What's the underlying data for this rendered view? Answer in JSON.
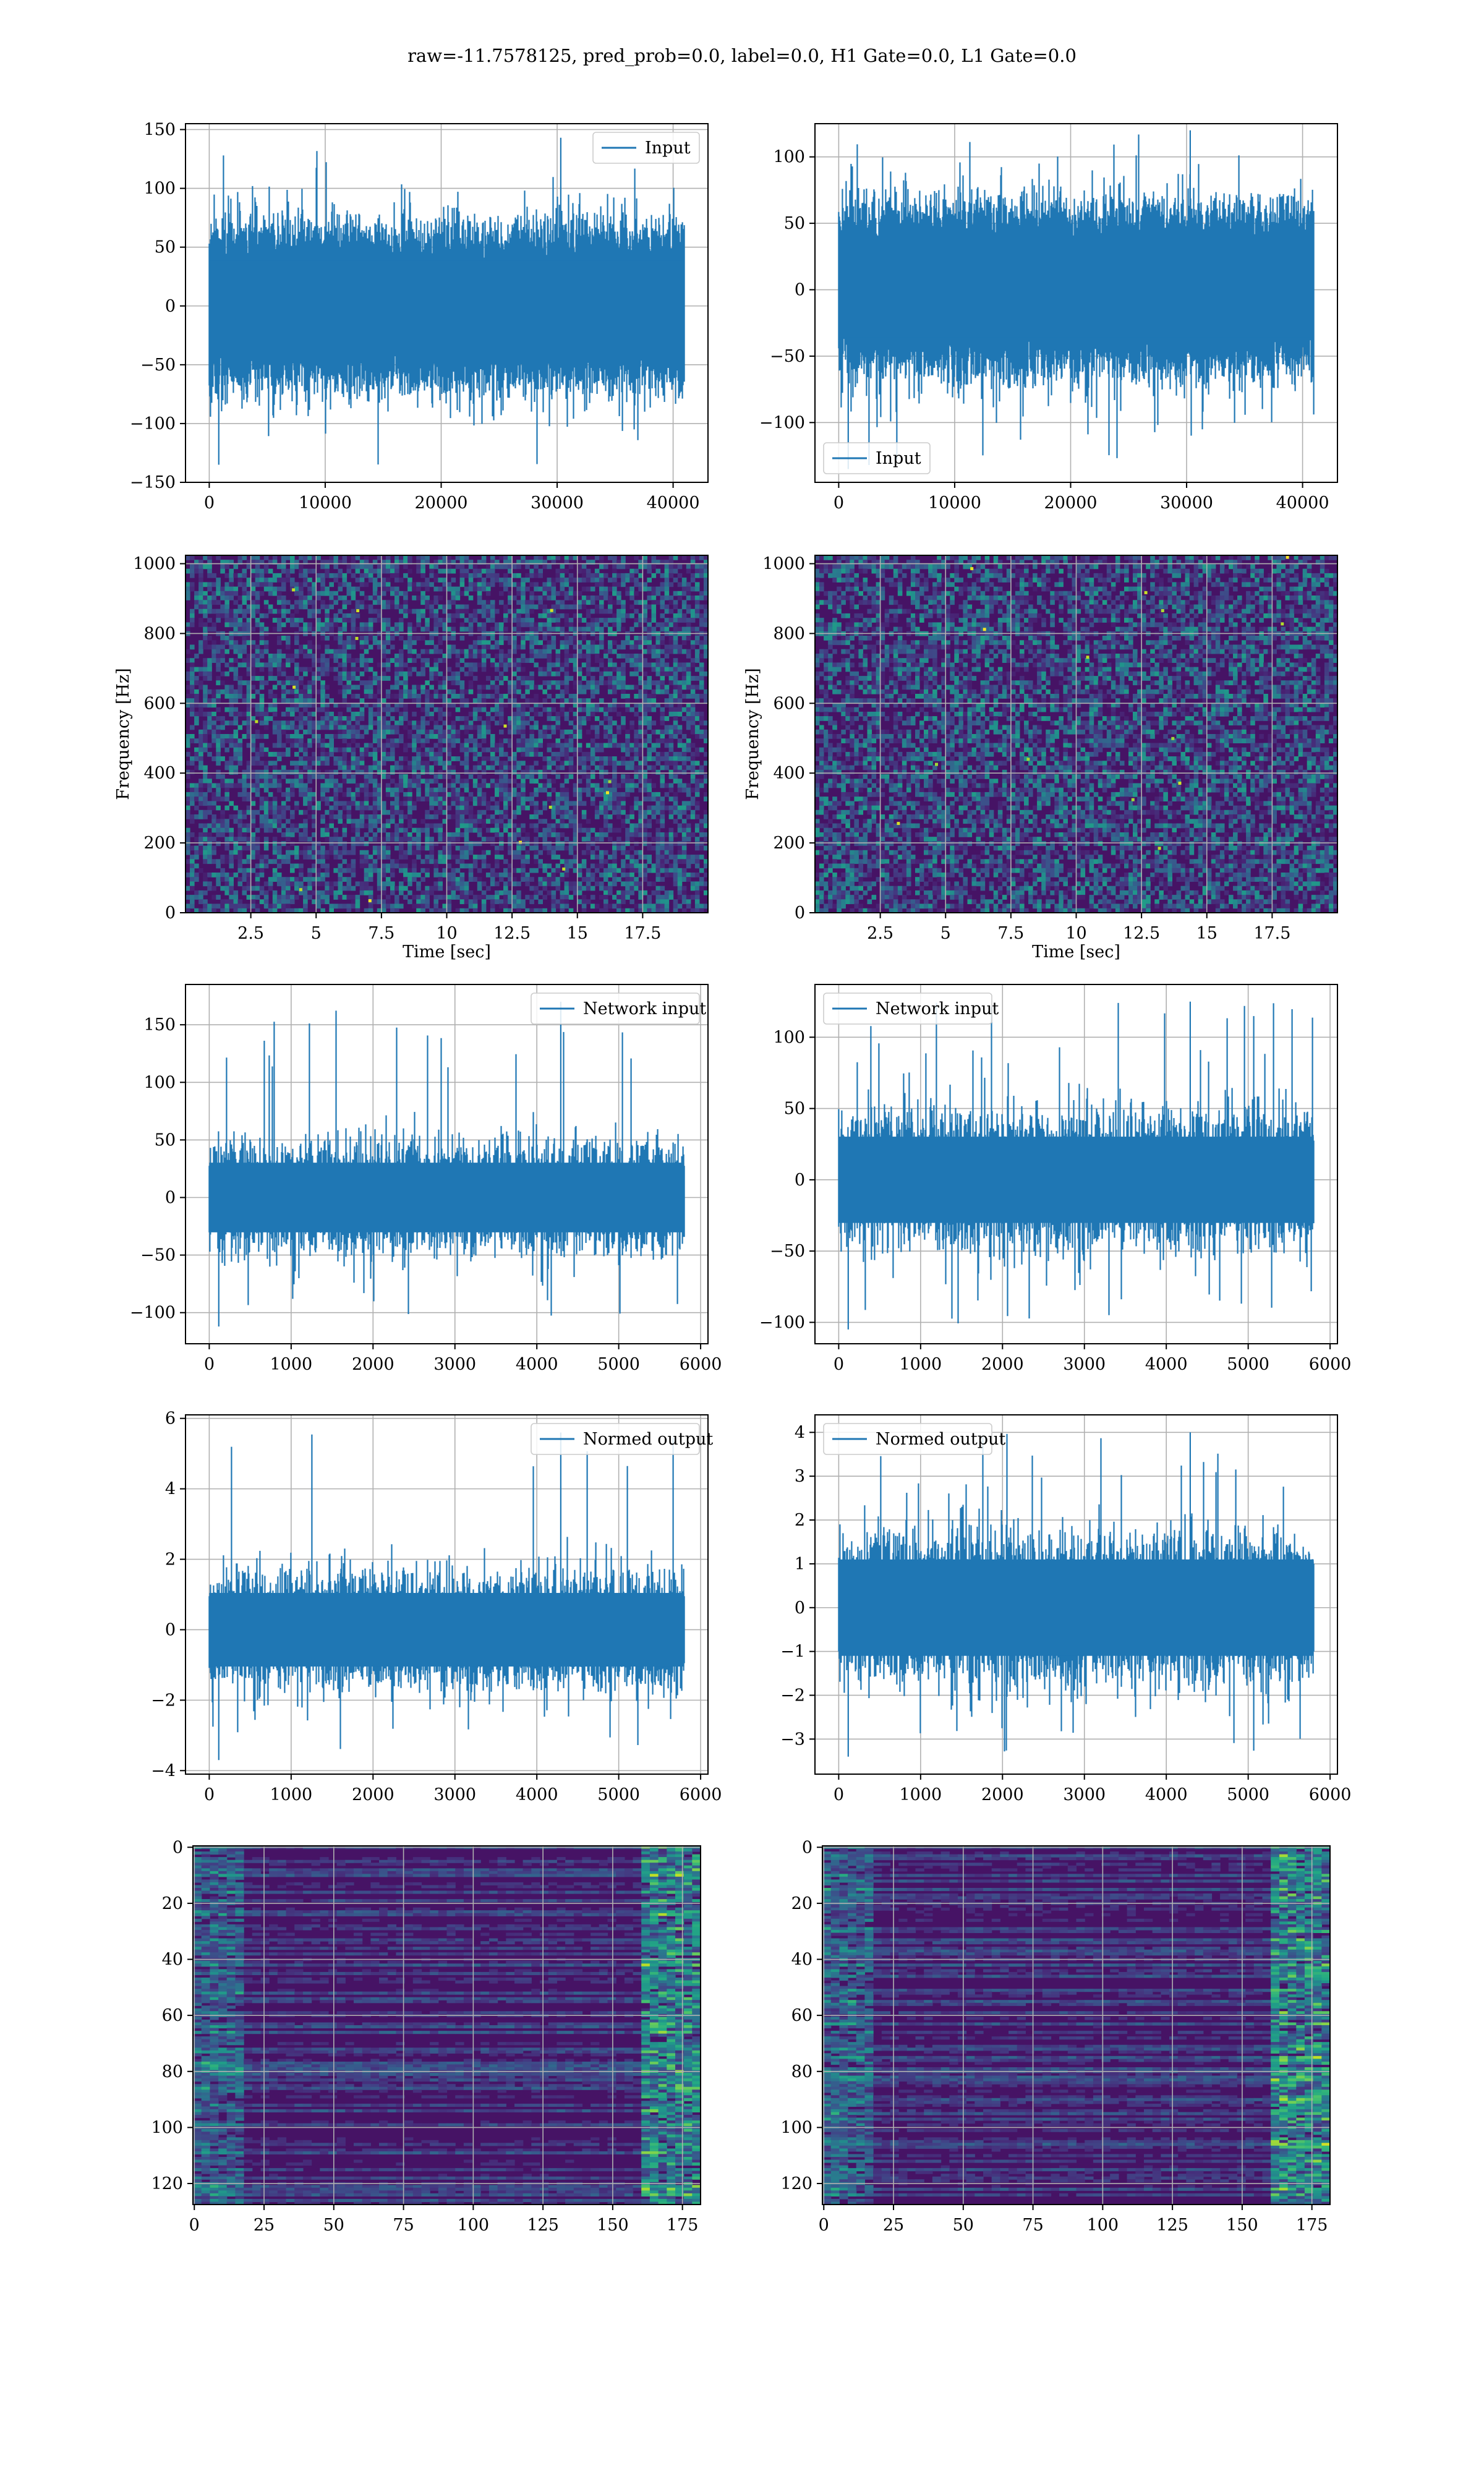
{
  "figure": {
    "title": "raw=-11.7578125, pred_prob=0.0, label=0.0, H1 Gate=0.0, L1 Gate=0.0"
  },
  "colors": {
    "line": "#1f77b4",
    "grid": "#b0b0b0"
  },
  "chart_data": [
    {
      "type": "line",
      "position": "row1-left",
      "series": [
        {
          "name": "Input",
          "n_points": 40960,
          "amplitude_typical": 70,
          "min": -135,
          "max": 143
        }
      ],
      "xlim": [
        -2048,
        43008
      ],
      "ylim": [
        -150,
        155
      ],
      "xticks": [
        0,
        10000,
        20000,
        30000,
        40000
      ],
      "yticks": [
        -150,
        -100,
        -50,
        0,
        50,
        100,
        150
      ],
      "legend": "upper right",
      "grid": true,
      "xlabel": "",
      "ylabel": ""
    },
    {
      "type": "line",
      "position": "row1-right",
      "series": [
        {
          "name": "Input",
          "n_points": 40960,
          "amplitude_typical": 65,
          "min": -135,
          "max": 120
        }
      ],
      "xlim": [
        -2048,
        43008
      ],
      "ylim": [
        -145,
        125
      ],
      "xticks": [
        0,
        10000,
        20000,
        30000,
        40000
      ],
      "yticks": [
        -100,
        -50,
        0,
        50,
        100
      ],
      "legend": "lower left",
      "grid": true,
      "xlabel": "",
      "ylabel": ""
    },
    {
      "type": "heatmap",
      "position": "row2-left",
      "colormap": "viridis",
      "xlim": [
        0,
        20
      ],
      "ylim": [
        0,
        1024
      ],
      "xticks": [
        2.5,
        5.0,
        7.5,
        10.0,
        12.5,
        15.0,
        17.5
      ],
      "yticks": [
        0,
        200,
        400,
        600,
        800,
        1000
      ],
      "xlabel": "Time [sec]",
      "ylabel": "Frequency [Hz]",
      "grid": true
    },
    {
      "type": "heatmap",
      "position": "row2-right",
      "colormap": "viridis",
      "xlim": [
        0,
        20
      ],
      "ylim": [
        0,
        1024
      ],
      "xticks": [
        2.5,
        5.0,
        7.5,
        10.0,
        12.5,
        15.0,
        17.5
      ],
      "yticks": [
        0,
        200,
        400,
        600,
        800,
        1000
      ],
      "xlabel": "Time [sec]",
      "ylabel": "Frequency [Hz]",
      "grid": true
    },
    {
      "type": "line",
      "position": "row3-left",
      "series": [
        {
          "name": "Network input",
          "n_points": 5800,
          "amplitude_typical": 55,
          "min": -112,
          "max": 170
        }
      ],
      "xlim": [
        -290,
        6090
      ],
      "ylim": [
        -127,
        185
      ],
      "xticks": [
        0,
        1000,
        2000,
        3000,
        4000,
        5000,
        6000
      ],
      "yticks": [
        -100,
        -50,
        0,
        50,
        100,
        150
      ],
      "legend": "upper right",
      "grid": true,
      "xlabel": "",
      "ylabel": ""
    },
    {
      "type": "line",
      "position": "row3-right",
      "series": [
        {
          "name": "Network input",
          "n_points": 5800,
          "amplitude_typical": 55,
          "min": -105,
          "max": 125
        }
      ],
      "xlim": [
        -290,
        6090
      ],
      "ylim": [
        -115,
        137
      ],
      "xticks": [
        0,
        1000,
        2000,
        3000,
        4000,
        5000,
        6000
      ],
      "yticks": [
        -100,
        -50,
        0,
        50,
        100
      ],
      "legend": "upper left",
      "grid": true,
      "xlabel": "",
      "ylabel": ""
    },
    {
      "type": "line",
      "position": "row4-left",
      "series": [
        {
          "name": "Normed output",
          "n_points": 5800,
          "amplitude_typical": 1.9,
          "min": -3.7,
          "max": 5.6
        }
      ],
      "xlim": [
        -290,
        6090
      ],
      "ylim": [
        -4.1,
        6.1
      ],
      "xticks": [
        0,
        1000,
        2000,
        3000,
        4000,
        5000,
        6000
      ],
      "yticks": [
        -4,
        -2,
        0,
        2,
        4,
        6
      ],
      "legend": "upper right",
      "grid": true,
      "xlabel": "",
      "ylabel": ""
    },
    {
      "type": "line",
      "position": "row4-right",
      "series": [
        {
          "name": "Normed output",
          "n_points": 5800,
          "amplitude_typical": 2.0,
          "min": -3.4,
          "max": 4.0
        }
      ],
      "xlim": [
        -290,
        6090
      ],
      "ylim": [
        -3.8,
        4.4
      ],
      "xticks": [
        0,
        1000,
        2000,
        3000,
        4000,
        5000,
        6000
      ],
      "yticks": [
        -3,
        -2,
        -1,
        0,
        1,
        2,
        3,
        4
      ],
      "legend": "upper left",
      "grid": true,
      "xlabel": "",
      "ylabel": ""
    },
    {
      "type": "heatmap",
      "position": "row5-left",
      "colormap": "viridis",
      "rows": 128,
      "cols": 182,
      "y_inverted": true,
      "xlim": [
        -0.5,
        181.5
      ],
      "ylim": [
        127.5,
        -0.5
      ],
      "xticks": [
        0,
        25,
        50,
        75,
        100,
        125,
        150,
        175
      ],
      "yticks": [
        0,
        20,
        40,
        60,
        80,
        100,
        120
      ],
      "grid": true,
      "xlabel": "",
      "ylabel": ""
    },
    {
      "type": "heatmap",
      "position": "row5-right",
      "colormap": "viridis",
      "rows": 128,
      "cols": 182,
      "y_inverted": true,
      "xlim": [
        -0.5,
        181.5
      ],
      "ylim": [
        127.5,
        -0.5
      ],
      "xticks": [
        0,
        25,
        50,
        75,
        100,
        125,
        150,
        175
      ],
      "yticks": [
        0,
        20,
        40,
        60,
        80,
        100,
        120
      ],
      "grid": true,
      "xlabel": "",
      "ylabel": ""
    }
  ]
}
